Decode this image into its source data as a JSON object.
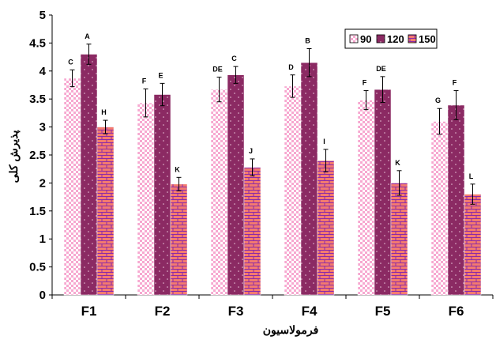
{
  "chart_data": {
    "type": "bar",
    "title": "",
    "xlabel": "فرمولاسیون",
    "ylabel": "پذیرش کلی",
    "ylim": [
      0,
      5
    ],
    "yticks": [
      "0",
      "0.5",
      "1",
      "1.5",
      "2",
      "2.5",
      "3",
      "3.5",
      "4",
      "4.5",
      "5"
    ],
    "grid": false,
    "legend_position": "top-right",
    "categories": [
      "F1",
      "F2",
      "F3",
      "F4",
      "F5",
      "F6"
    ],
    "series": [
      {
        "name": "90",
        "color": "#f7a8d0",
        "pattern": "pink-checker",
        "values": [
          3.87,
          3.43,
          3.67,
          3.73,
          3.48,
          3.1
        ],
        "errors": [
          0.15,
          0.25,
          0.22,
          0.2,
          0.17,
          0.23
        ],
        "letters": [
          "C",
          "F",
          "DE",
          "D",
          "F",
          "G"
        ]
      },
      {
        "name": "120",
        "color": "#8b2a63",
        "pattern": "purple-dots",
        "values": [
          4.3,
          3.58,
          3.93,
          4.15,
          3.67,
          3.39
        ],
        "errors": [
          0.18,
          0.2,
          0.15,
          0.25,
          0.23,
          0.26
        ],
        "letters": [
          "A",
          "E",
          "C",
          "B",
          "DE",
          "F"
        ]
      },
      {
        "name": "150",
        "color": "#f47b6e",
        "pattern": "brick",
        "values": [
          3.0,
          1.98,
          2.28,
          2.4,
          2.0,
          1.8
        ],
        "errors": [
          0.12,
          0.12,
          0.15,
          0.2,
          0.22,
          0.18
        ],
        "letters": [
          "H",
          "K",
          "J",
          "I",
          "K",
          "L"
        ]
      }
    ]
  }
}
